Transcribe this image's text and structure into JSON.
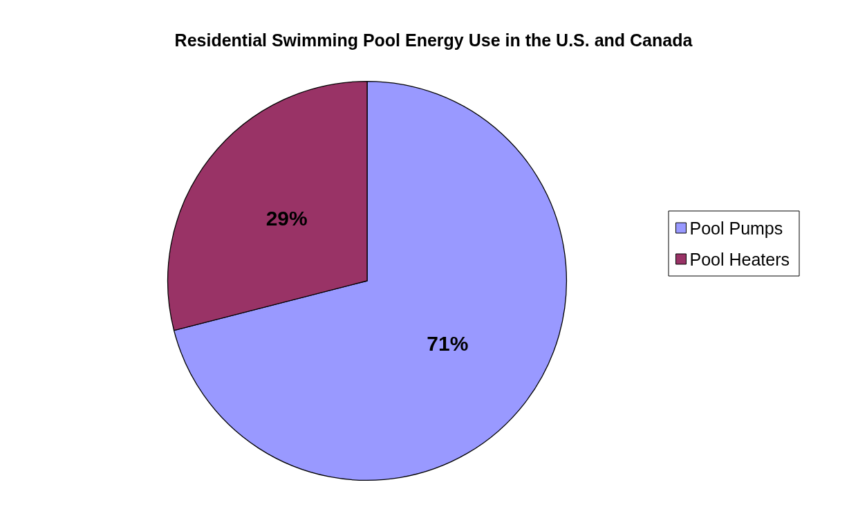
{
  "chart_data": {
    "type": "pie",
    "title": "Residential Swimming Pool Energy Use in the U.S. and Canada",
    "categories": [
      "Pool Pumps",
      "Pool Heaters"
    ],
    "values": [
      71,
      29
    ],
    "colors": [
      "#9999ff",
      "#993366"
    ],
    "value_labels": [
      "71%",
      "29%"
    ],
    "legend": "right"
  }
}
